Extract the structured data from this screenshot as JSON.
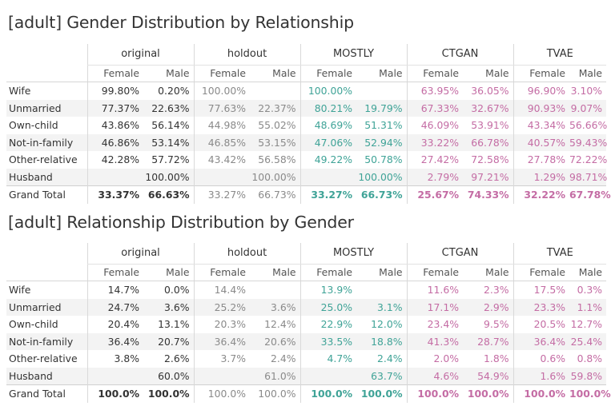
{
  "groups": [
    {
      "key": "orig",
      "label": "original"
    },
    {
      "key": "hold",
      "label": "holdout"
    },
    {
      "key": "mostly",
      "label": "MOSTLY"
    },
    {
      "key": "ctgan",
      "label": "CTGAN"
    },
    {
      "key": "tvae",
      "label": "TVAE"
    }
  ],
  "subheaders": [
    "Female",
    "Male"
  ],
  "colors": {
    "original": "#333333",
    "holdout": "#8a8a8a",
    "mostly": "#3fa397",
    "ctgan": "#c46ca4",
    "tvae": "#c46ca4"
  },
  "tables": [
    {
      "title": "[adult] Gender Distribution by Relationship",
      "rows": [
        {
          "label": "Wife",
          "cells": [
            "99.80%",
            "0.20%",
            "100.00%",
            "",
            "100.00%",
            "",
            "63.95%",
            "36.05%",
            "96.90%",
            "3.10%"
          ]
        },
        {
          "label": "Unmarried",
          "cells": [
            "77.37%",
            "22.63%",
            "77.63%",
            "22.37%",
            "80.21%",
            "19.79%",
            "67.33%",
            "32.67%",
            "90.93%",
            "9.07%"
          ]
        },
        {
          "label": "Own-child",
          "cells": [
            "43.86%",
            "56.14%",
            "44.98%",
            "55.02%",
            "48.69%",
            "51.31%",
            "46.09%",
            "53.91%",
            "43.34%",
            "56.66%"
          ]
        },
        {
          "label": "Not-in-family",
          "cells": [
            "46.86%",
            "53.14%",
            "46.85%",
            "53.15%",
            "47.06%",
            "52.94%",
            "33.22%",
            "66.78%",
            "40.57%",
            "59.43%"
          ]
        },
        {
          "label": "Other-relative",
          "cells": [
            "42.28%",
            "57.72%",
            "43.42%",
            "56.58%",
            "49.22%",
            "50.78%",
            "27.42%",
            "72.58%",
            "27.78%",
            "72.22%"
          ]
        },
        {
          "label": "Husband",
          "cells": [
            "",
            "100.00%",
            "",
            "100.00%",
            "",
            "100.00%",
            "2.79%",
            "97.21%",
            "1.29%",
            "98.71%"
          ]
        }
      ],
      "total": {
        "label": "Grand Total",
        "cells": [
          "33.37%",
          "66.63%",
          "33.27%",
          "66.73%",
          "33.27%",
          "66.73%",
          "25.67%",
          "74.33%",
          "32.22%",
          "67.78%"
        ]
      }
    },
    {
      "title": "[adult] Relationship Distribution by Gender",
      "rows": [
        {
          "label": "Wife",
          "cells": [
            "14.7%",
            "0.0%",
            "14.4%",
            "",
            "13.9%",
            "",
            "11.6%",
            "2.3%",
            "17.5%",
            "0.3%"
          ]
        },
        {
          "label": "Unmarried",
          "cells": [
            "24.7%",
            "3.6%",
            "25.2%",
            "3.6%",
            "25.0%",
            "3.1%",
            "17.1%",
            "2.9%",
            "23.3%",
            "1.1%"
          ]
        },
        {
          "label": "Own-child",
          "cells": [
            "20.4%",
            "13.1%",
            "20.3%",
            "12.4%",
            "22.9%",
            "12.0%",
            "23.4%",
            "9.5%",
            "20.5%",
            "12.7%"
          ]
        },
        {
          "label": "Not-in-family",
          "cells": [
            "36.4%",
            "20.7%",
            "36.4%",
            "20.6%",
            "33.5%",
            "18.8%",
            "41.3%",
            "28.7%",
            "36.4%",
            "25.4%"
          ]
        },
        {
          "label": "Other-relative",
          "cells": [
            "3.8%",
            "2.6%",
            "3.7%",
            "2.4%",
            "4.7%",
            "2.4%",
            "2.0%",
            "1.8%",
            "0.6%",
            "0.8%"
          ]
        },
        {
          "label": "Husband",
          "cells": [
            "",
            "60.0%",
            "",
            "61.0%",
            "",
            "63.7%",
            "4.6%",
            "54.9%",
            "1.6%",
            "59.8%"
          ]
        }
      ],
      "total": {
        "label": "Grand Total",
        "cells": [
          "100.0%",
          "100.0%",
          "100.0%",
          "100.0%",
          "100.0%",
          "100.0%",
          "100.0%",
          "100.0%",
          "100.0%",
          "100.0%"
        ]
      }
    }
  ]
}
